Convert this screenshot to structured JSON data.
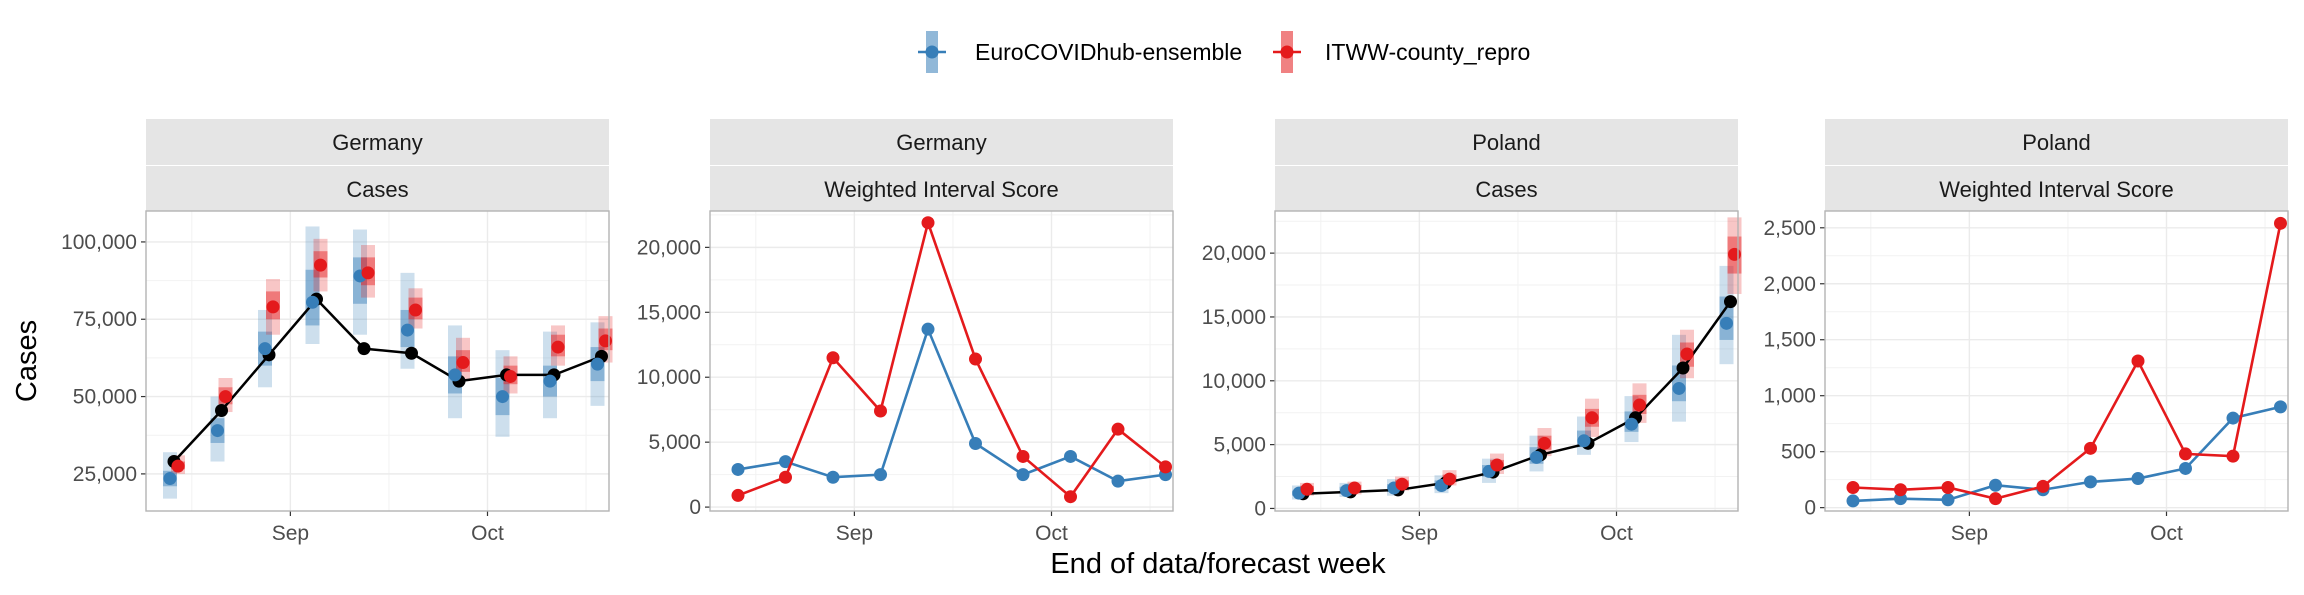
{
  "colors": {
    "truth": "#000000",
    "ensemble": "#377eb8",
    "itww": "#e41a1c",
    "strip_bg": "#e5e5e5",
    "grid": "#ebebeb",
    "panel_border": "#b3b3b3"
  },
  "legend": {
    "items": [
      {
        "label": "EuroCOVIDhub-ensemble",
        "color": "#377eb8"
      },
      {
        "label": "ITWW-county_repro",
        "color": "#e41a1c"
      }
    ]
  },
  "x_axis_title": "End of data/forecast week",
  "y_axis_title": "Cases",
  "x_tick_labels": [
    "Sep",
    "Oct"
  ],
  "chart_data": [
    {
      "type": "forecast-intervals",
      "strip": [
        "Germany",
        "Cases"
      ],
      "ylim": [
        13000,
        110000
      ],
      "yticks": [
        25000,
        50000,
        75000,
        100000
      ],
      "ytick_labels": [
        "25,000",
        "50,000",
        "75,000",
        "100,000"
      ],
      "weeks": [
        0,
        1,
        2,
        3,
        4,
        5,
        6,
        7,
        8,
        9
      ],
      "truth": [
        29000,
        45500,
        63500,
        81500,
        65500,
        64000,
        55000,
        57000,
        57000,
        63000
      ],
      "series": [
        {
          "name": "EuroCOVIDhub-ensemble",
          "median": [
            23500,
            39000,
            65500,
            80500,
            89000,
            71500,
            57000,
            50000,
            55000,
            60500
          ],
          "outer": [
            [
              17000,
              32000
            ],
            [
              29000,
              50000
            ],
            [
              53000,
              78000
            ],
            [
              67000,
              105000
            ],
            [
              70000,
              104000
            ],
            [
              59000,
              90000
            ],
            [
              43000,
              73000
            ],
            [
              37000,
              65000
            ],
            [
              43000,
              71000
            ],
            [
              47000,
              74000
            ]
          ],
          "inner": [
            [
              21000,
              26000
            ],
            [
              35000,
              43000
            ],
            [
              60000,
              71000
            ],
            [
              73000,
              91000
            ],
            [
              80000,
              95000
            ],
            [
              66000,
              78000
            ],
            [
              51000,
              63000
            ],
            [
              44000,
              56000
            ],
            [
              50000,
              60000
            ],
            [
              55000,
              66000
            ]
          ]
        },
        {
          "name": "ITWW-county_repro",
          "median": [
            27500,
            50000,
            79000,
            92500,
            90000,
            78000,
            61000,
            56500,
            66000,
            68000
          ],
          "outer": [
            [
              25000,
              31000
            ],
            [
              45000,
              56000
            ],
            [
              70000,
              88000
            ],
            [
              84000,
              101000
            ],
            [
              82000,
              99000
            ],
            [
              72000,
              85000
            ],
            [
              55000,
              69000
            ],
            [
              51000,
              63000
            ],
            [
              60000,
              73000
            ],
            [
              61000,
              76000
            ]
          ],
          "inner": [
            [
              26500,
              29000
            ],
            [
              47500,
              53000
            ],
            [
              75000,
              84000
            ],
            [
              88500,
              97000
            ],
            [
              86000,
              95000
            ],
            [
              75000,
              82000
            ],
            [
              58000,
              65000
            ],
            [
              54000,
              60000
            ],
            [
              63000,
              70000
            ],
            [
              65000,
              72000
            ]
          ]
        }
      ]
    },
    {
      "type": "line",
      "strip": [
        "Germany",
        "Weighted Interval Score"
      ],
      "ylim": [
        -300,
        22800
      ],
      "yticks": [
        0,
        5000,
        10000,
        15000,
        20000
      ],
      "ytick_labels": [
        "0",
        "5,000",
        "10,000",
        "15,000",
        "20,000"
      ],
      "weeks": [
        0,
        1,
        2,
        3,
        4,
        5,
        6,
        7,
        8,
        9
      ],
      "series": [
        {
          "name": "EuroCOVIDhub-ensemble",
          "values": [
            2900,
            3500,
            2300,
            2500,
            13700,
            4900,
            2500,
            3900,
            2000,
            2500
          ]
        },
        {
          "name": "ITWW-county_repro",
          "values": [
            900,
            2300,
            11500,
            7400,
            21900,
            11400,
            3900,
            800,
            6000,
            3100
          ]
        }
      ]
    },
    {
      "type": "forecast-intervals",
      "strip": [
        "Poland",
        "Cases"
      ],
      "ylim": [
        -200,
        23300
      ],
      "yticks": [
        0,
        5000,
        10000,
        15000,
        20000
      ],
      "ytick_labels": [
        "0",
        "5,000",
        "10,000",
        "15,000",
        "20,000"
      ],
      "weeks": [
        0,
        1,
        2,
        3,
        4,
        5,
        6,
        7,
        8,
        9
      ],
      "truth": [
        1150,
        1300,
        1450,
        2000,
        2850,
        4200,
        5100,
        7100,
        11000,
        16200
      ],
      "series": [
        {
          "name": "EuroCOVIDhub-ensemble",
          "median": [
            1200,
            1400,
            1600,
            1800,
            2900,
            4000,
            5300,
            6600,
            9400,
            14500
          ],
          "outer": [
            [
              700,
              1800
            ],
            [
              900,
              2000
            ],
            [
              1000,
              2300
            ],
            [
              1200,
              2600
            ],
            [
              2000,
              3900
            ],
            [
              2900,
              5700
            ],
            [
              4200,
              7200
            ],
            [
              5200,
              8800
            ],
            [
              6800,
              13600
            ],
            [
              11300,
              19000
            ]
          ],
          "inner": [
            [
              1000,
              1400
            ],
            [
              1200,
              1700
            ],
            [
              1300,
              1900
            ],
            [
              1500,
              2200
            ],
            [
              2500,
              3400
            ],
            [
              3500,
              4800
            ],
            [
              4800,
              6100
            ],
            [
              6000,
              7600
            ],
            [
              8400,
              11200
            ],
            [
              13200,
              16600
            ]
          ]
        },
        {
          "name": "ITWW-county_repro",
          "median": [
            1500,
            1600,
            1900,
            2300,
            3400,
            5100,
            7100,
            8100,
            12100,
            19900
          ],
          "outer": [
            [
              1000,
              2000
            ],
            [
              1100,
              2100
            ],
            [
              1400,
              2500
            ],
            [
              1800,
              3000
            ],
            [
              2700,
              4300
            ],
            [
              4100,
              6300
            ],
            [
              5600,
              8600
            ],
            [
              6700,
              9800
            ],
            [
              10200,
              14000
            ],
            [
              16800,
              22800
            ]
          ],
          "inner": [
            [
              1250,
              1750
            ],
            [
              1350,
              1850
            ],
            [
              1650,
              2200
            ],
            [
              2050,
              2650
            ],
            [
              3050,
              3800
            ],
            [
              4600,
              5700
            ],
            [
              6400,
              7800
            ],
            [
              7400,
              8900
            ],
            [
              11100,
              13000
            ],
            [
              18400,
              21300
            ]
          ]
        }
      ]
    },
    {
      "type": "line",
      "strip": [
        "Poland",
        "Weighted Interval Score"
      ],
      "ylim": [
        -30,
        2650
      ],
      "yticks": [
        0,
        500,
        1000,
        1500,
        2000,
        2500
      ],
      "ytick_labels": [
        "0",
        "500",
        "1,000",
        "1,500",
        "2,000",
        "2,500"
      ],
      "weeks": [
        0,
        1,
        2,
        3,
        4,
        5,
        6,
        7,
        8,
        9
      ],
      "series": [
        {
          "name": "EuroCOVIDhub-ensemble",
          "values": [
            60,
            80,
            70,
            200,
            160,
            230,
            260,
            350,
            800,
            900
          ]
        },
        {
          "name": "ITWW-county_repro",
          "values": [
            180,
            160,
            180,
            80,
            190,
            530,
            1310,
            480,
            460,
            2540
          ]
        }
      ]
    }
  ]
}
